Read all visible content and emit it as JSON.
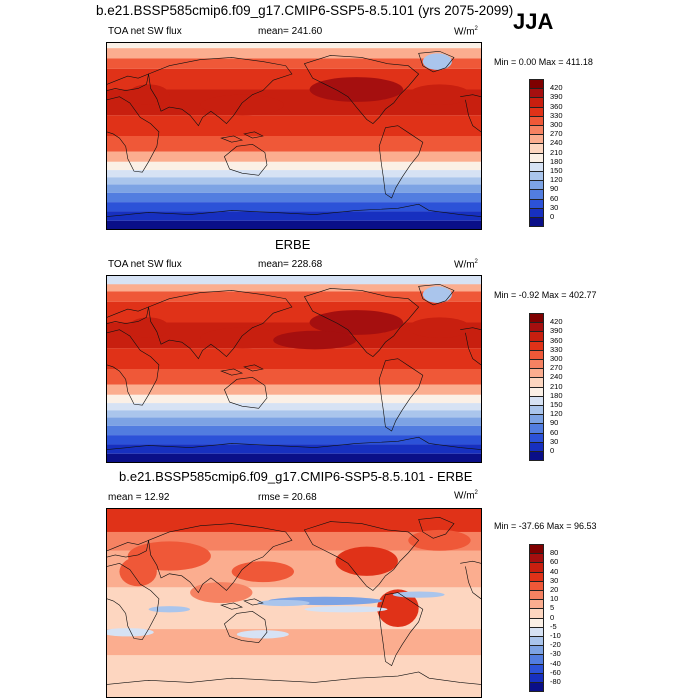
{
  "title": "b.e21.BSSP585cmip6.f09_g17.CMIP6-SSP5-8.5.101 (yrs 2075-2099)",
  "season": "JJA",
  "panels": [
    {
      "id": "model",
      "center_title": "",
      "left_label": "TOA net SW flux",
      "mid_label": "mean= 241.60",
      "units": "W/m",
      "units_sup": "2",
      "minmax": "Min =   0.00 Max = 411.18",
      "palette": "seq",
      "colorbar_labels": [
        "420",
        "390",
        "360",
        "330",
        "300",
        "270",
        "240",
        "210",
        "180",
        "150",
        "120",
        "90",
        "60",
        "30",
        "0"
      ]
    },
    {
      "id": "obs",
      "center_title": "ERBE",
      "left_label": "TOA net SW flux",
      "mid_label": "mean= 228.68",
      "units": "W/m",
      "units_sup": "2",
      "minmax": "Min =  -0.92 Max = 402.77",
      "palette": "seq",
      "colorbar_labels": [
        "420",
        "390",
        "360",
        "330",
        "300",
        "270",
        "240",
        "210",
        "180",
        "150",
        "120",
        "90",
        "60",
        "30",
        "0"
      ]
    },
    {
      "id": "diff",
      "center_title": "b.e21.BSSP585cmip6.f09_g17.CMIP6-SSP5-8.5.101 - ERBE",
      "left_label": "mean =  12.92",
      "mid_label": "rmse =  20.68",
      "units": "W/m",
      "units_sup": "2",
      "minmax": "Min = -37.66 Max =  96.53",
      "palette": "div",
      "colorbar_labels": [
        "80",
        "60",
        "40",
        "30",
        "20",
        "10",
        "5",
        "0",
        "-5",
        "-10",
        "-20",
        "-30",
        "-40",
        "-60",
        "-80"
      ]
    }
  ],
  "colors": {
    "seq": [
      "#7f0000",
      "#a50f0f",
      "#c81f0f",
      "#e03218",
      "#ef5838",
      "#f68262",
      "#fbad8f",
      "#fdd6c0",
      "#fbf0e6",
      "#d6e2f4",
      "#aac5ec",
      "#7da3e4",
      "#527de0",
      "#2c52d8",
      "#1730c0",
      "#0a0f88"
    ],
    "div": [
      "#7f0000",
      "#a50f0f",
      "#c81f0f",
      "#e03218",
      "#ef5838",
      "#f68262",
      "#fbad8f",
      "#fdd6c0",
      "#fbf0e6",
      "#d6e2f4",
      "#aac5ec",
      "#7da3e4",
      "#527de0",
      "#2c52d8",
      "#1730c0",
      "#0a0f88"
    ]
  }
}
